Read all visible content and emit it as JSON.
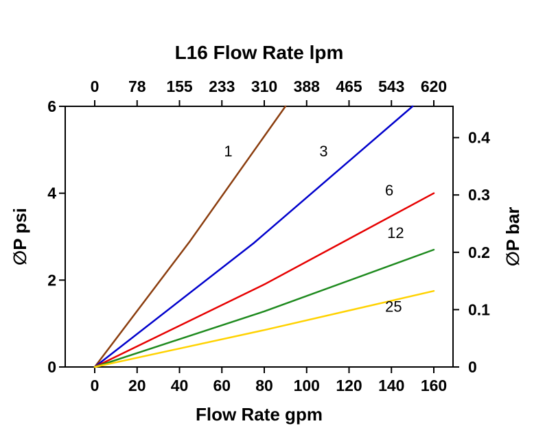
{
  "page": {
    "background": "#ffffff",
    "plot_border_color": "#000000"
  },
  "chart_data": {
    "type": "line",
    "title": "L16 Flow Rate lpm",
    "grid": false,
    "x_axis": {
      "label": "Flow Rate gpm",
      "ticks": [
        0,
        20,
        40,
        60,
        80,
        100,
        120,
        140,
        160
      ],
      "range": [
        -14,
        169
      ]
    },
    "top_axis": {
      "tick_labels": [
        "0",
        "78",
        "155",
        "233",
        "310",
        "388",
        "465",
        "543",
        "620"
      ]
    },
    "y_axis_left": {
      "label": "∅P psi",
      "ticks": [
        0,
        2,
        4,
        6
      ],
      "range": [
        0,
        6
      ]
    },
    "y_axis_right": {
      "label": "∅P bar",
      "tick_labels": [
        "0",
        "0.1",
        "0.2",
        "0.3",
        "0.4"
      ],
      "tick_values": [
        0,
        0.1,
        0.2,
        0.3,
        0.4
      ],
      "psi_per_bar": 13.2
    },
    "series": [
      {
        "label": "1",
        "color": "#8b3d0e",
        "points": [
          [
            0,
            0
          ],
          [
            45,
            2.9
          ],
          [
            90,
            6
          ]
        ],
        "label_pos": [
          63,
          4.85
        ]
      },
      {
        "label": "3",
        "color": "#0000cc",
        "points": [
          [
            0,
            0
          ],
          [
            75,
            2.85
          ],
          [
            150,
            6
          ]
        ],
        "label_pos": [
          108,
          4.85
        ]
      },
      {
        "label": "6",
        "color": "#e60000",
        "points": [
          [
            0,
            0
          ],
          [
            80,
            1.9
          ],
          [
            160,
            4.0
          ]
        ],
        "label_pos": [
          139,
          3.95
        ]
      },
      {
        "label": "12",
        "color": "#1e8a1e",
        "points": [
          [
            0,
            0
          ],
          [
            80,
            1.28
          ],
          [
            160,
            2.7
          ]
        ],
        "label_pos": [
          142,
          2.97
        ]
      },
      {
        "label": "25",
        "color": "#ffd200",
        "points": [
          [
            0,
            0
          ],
          [
            80,
            0.85
          ],
          [
            160,
            1.75
          ]
        ],
        "label_pos": [
          141,
          1.27
        ]
      }
    ]
  }
}
